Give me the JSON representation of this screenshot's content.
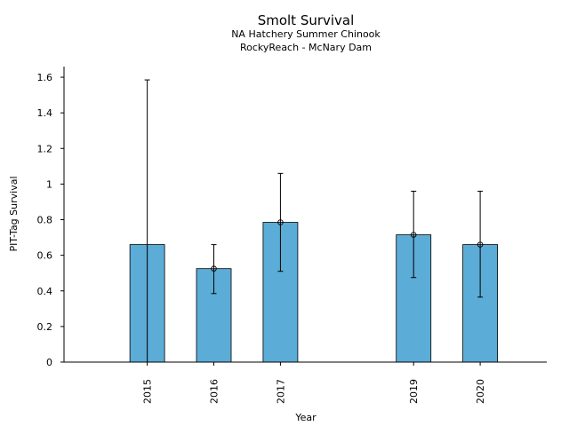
{
  "chart_data": {
    "type": "bar",
    "title": "Smolt Survival",
    "subtitle_lines": [
      "NA Hatchery Summer Chinook",
      "RockyReach - McNary Dam"
    ],
    "xlabel": "Year",
    "ylabel": "PIT-Tag Survival",
    "x": [
      2015,
      2016,
      2017,
      2019,
      2020
    ],
    "categories": [
      "2015",
      "2016",
      "2017",
      "2019",
      "2020"
    ],
    "values": [
      0.66,
      0.525,
      0.785,
      0.715,
      0.66
    ],
    "error_low": [
      null,
      0.385,
      0.51,
      0.475,
      0.365
    ],
    "error_high": [
      1.585,
      0.66,
      1.06,
      0.96,
      0.96
    ],
    "point_markers": [
      false,
      true,
      true,
      true,
      true
    ],
    "ylim": [
      0,
      1.66
    ],
    "xlim": [
      2013.75,
      2021.0
    ],
    "yticks": [
      0,
      0.2,
      0.4,
      0.6,
      0.8,
      1,
      1.2,
      1.4,
      1.6
    ],
    "ytick_labels": [
      "0",
      "0.2",
      "0.4",
      "0.6",
      "0.8",
      "1",
      "1.2",
      "1.4",
      "1.6"
    ],
    "bar_color": "#5bacd6",
    "bar_edge_color": "#000000",
    "grid": false,
    "legend": "none"
  }
}
